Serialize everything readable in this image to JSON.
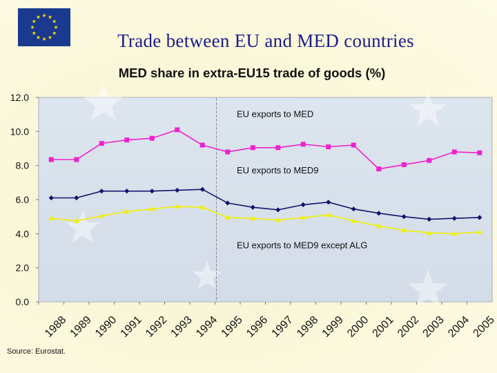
{
  "slide": {
    "title": "Trade between EU and MED countries",
    "source": "Source: Eurostat."
  },
  "chart_data": {
    "type": "line",
    "title": "MED share in extra-EU15 trade of goods (%)",
    "xlabel": "",
    "ylabel": "",
    "ylim": [
      0,
      12
    ],
    "yticks": [
      "0.0",
      "2.0",
      "4.0",
      "6.0",
      "8.0",
      "10.0",
      "12.0"
    ],
    "grid": false,
    "categories": [
      "1988",
      "1989",
      "1990",
      "1991",
      "1992",
      "1993",
      "1994",
      "1995",
      "1996",
      "1997",
      "1998",
      "1999",
      "2000",
      "2001",
      "2002",
      "2003",
      "2004",
      "2005"
    ],
    "series": [
      {
        "name": "EU exports to MED",
        "color": "#ee22cc",
        "marker": "square",
        "values": [
          8.35,
          8.35,
          9.3,
          9.5,
          9.6,
          10.1,
          9.2,
          8.8,
          9.05,
          9.05,
          9.25,
          9.1,
          9.2,
          7.8,
          8.05,
          8.3,
          8.8,
          8.75
        ]
      },
      {
        "name": "EU exports to MED9",
        "color": "#12126e",
        "marker": "diamond",
        "values": [
          6.1,
          6.1,
          6.5,
          6.5,
          6.5,
          6.55,
          6.6,
          5.8,
          5.55,
          5.4,
          5.7,
          5.85,
          5.45,
          5.2,
          5.0,
          4.85,
          4.9,
          4.95
        ]
      },
      {
        "name": "EU exports to MED9 except ALG",
        "color": "#f0f000",
        "marker": "triangle",
        "values": [
          4.9,
          4.75,
          5.05,
          5.3,
          5.45,
          5.6,
          5.55,
          4.95,
          4.9,
          4.8,
          4.95,
          5.1,
          4.75,
          4.45,
          4.2,
          4.05,
          4.0,
          4.1
        ]
      }
    ],
    "vertical_marker": "1995"
  }
}
